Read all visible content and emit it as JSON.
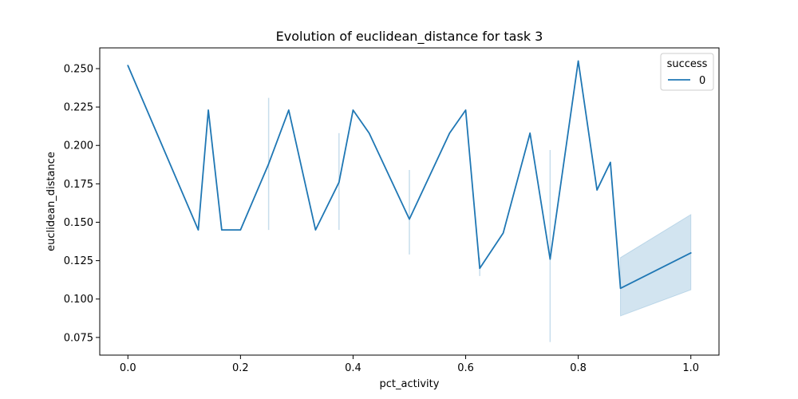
{
  "chart_data": {
    "type": "line",
    "title": "Evolution of euclidean_distance for task 3",
    "xlabel": "pct_activity",
    "ylabel": "euclidean_distance",
    "xlim": [
      -0.05,
      1.05
    ],
    "ylim": [
      0.0635,
      0.2635
    ],
    "xticks": [
      "0.0",
      "0.2",
      "0.4",
      "0.6",
      "0.8",
      "1.0"
    ],
    "yticks": [
      "0.075",
      "0.100",
      "0.125",
      "0.150",
      "0.175",
      "0.200",
      "0.225",
      "0.250"
    ],
    "legend": {
      "title": "success",
      "placement": "top-right",
      "entries": [
        "0"
      ]
    },
    "colors": {
      "line": "#1f77b4",
      "band": "#1f77b4"
    },
    "series": [
      {
        "name": "0",
        "x": [
          0.0,
          0.125,
          0.1429,
          0.1667,
          0.2,
          0.25,
          0.2857,
          0.3333,
          0.375,
          0.4,
          0.4286,
          0.5,
          0.5714,
          0.6,
          0.625,
          0.6667,
          0.7143,
          0.75,
          0.8,
          0.8333,
          0.8571,
          0.875,
          1.0
        ],
        "y": [
          0.252,
          0.145,
          0.223,
          0.145,
          0.145,
          0.188,
          0.223,
          0.145,
          0.176,
          0.223,
          0.208,
          0.152,
          0.208,
          0.223,
          0.12,
          0.143,
          0.208,
          0.126,
          0.255,
          0.171,
          0.189,
          0.107,
          0.13
        ],
        "ci_low": [
          0.252,
          0.145,
          0.223,
          0.145,
          0.145,
          0.145,
          0.223,
          0.145,
          0.145,
          0.223,
          0.208,
          0.129,
          0.208,
          0.223,
          0.115,
          0.143,
          0.208,
          0.072,
          0.255,
          0.171,
          0.189,
          0.089,
          0.106
        ],
        "ci_high": [
          0.252,
          0.145,
          0.223,
          0.145,
          0.145,
          0.231,
          0.223,
          0.145,
          0.208,
          0.223,
          0.208,
          0.184,
          0.208,
          0.223,
          0.127,
          0.143,
          0.208,
          0.197,
          0.255,
          0.171,
          0.189,
          0.127,
          0.155
        ]
      }
    ]
  }
}
